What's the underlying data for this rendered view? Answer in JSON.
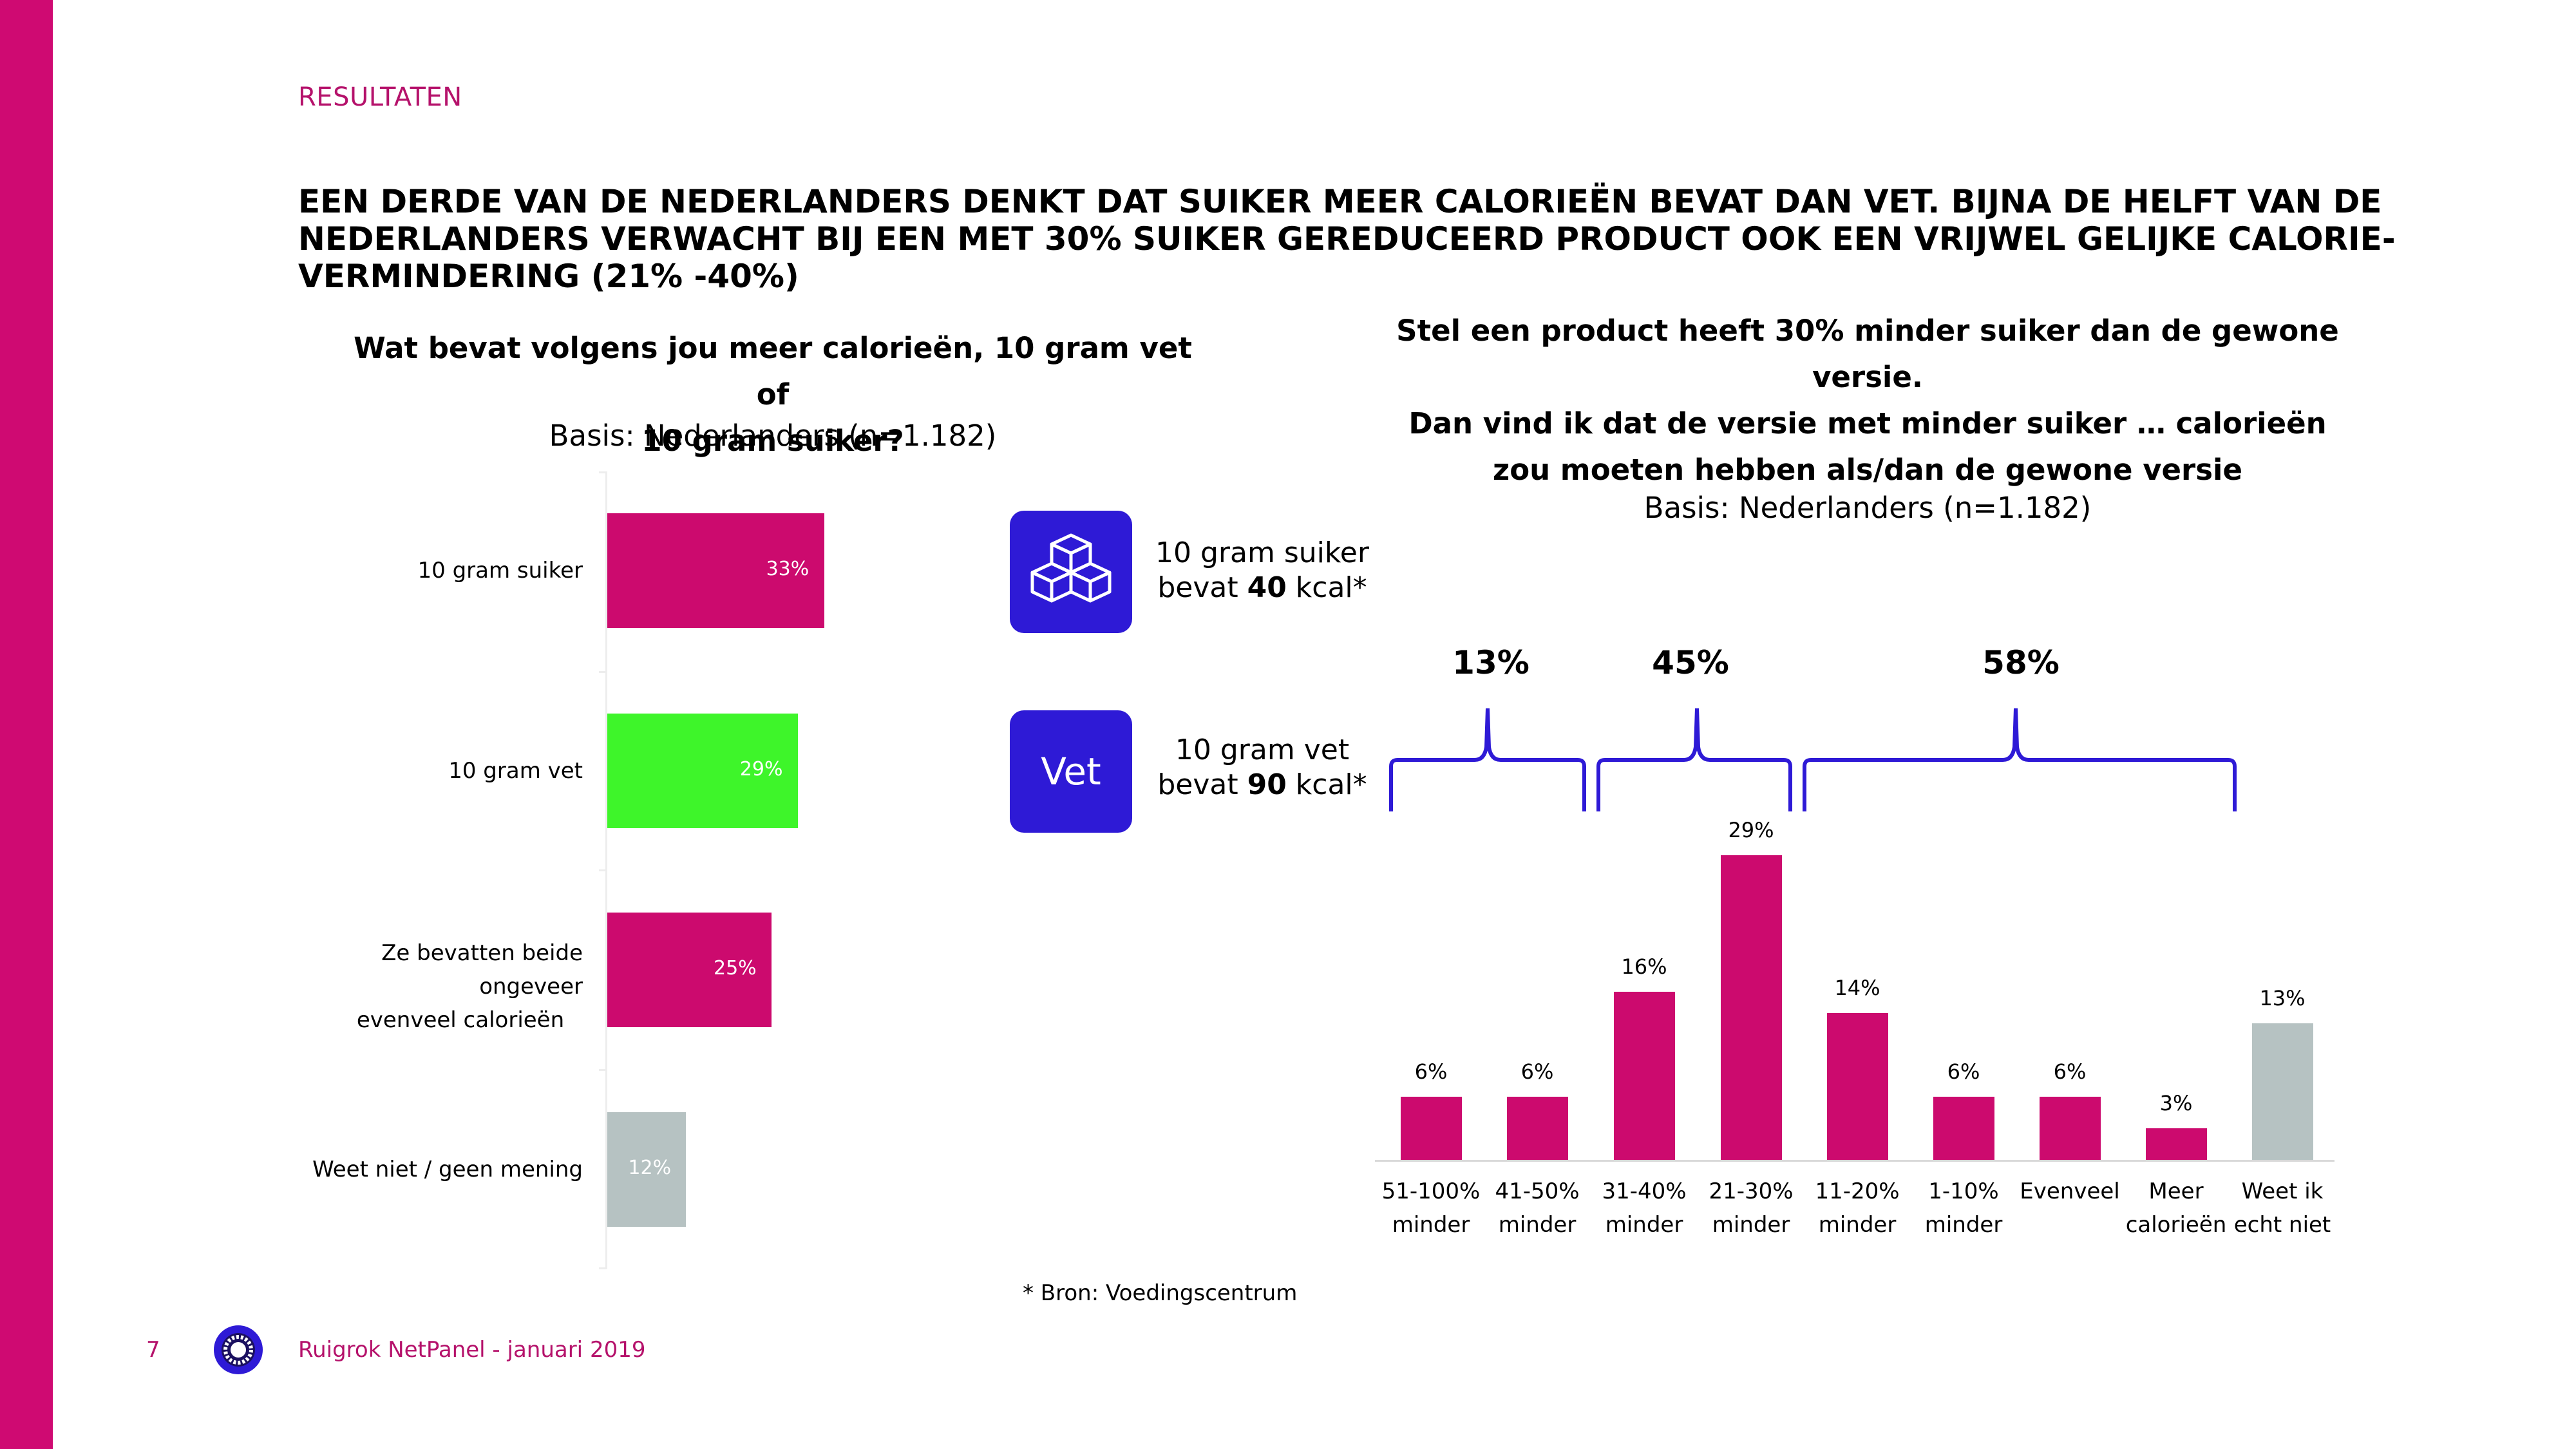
{
  "section": "RESULTATEN",
  "headline": "EEN DERDE VAN DE NEDERLANDERS DENKT DAT SUIKER MEER CALORIEËN BEVAT DAN VET. BIJNA DE HELFT VAN DE NEDERLANDERS VERWACHT BIJ EEN MET 30% SUIKER GEREDUCEERD PRODUCT OOK EEN VRIJWEL GELIJKE CALORIE-VERMINDERING (21% -40%)",
  "colors": {
    "accent": "#cf0a72",
    "pink": "#cc0a6e",
    "green": "#3ef52a",
    "grey": "#b6c2c2",
    "iconBlue": "#2e1ad6",
    "bracket": "#2e1ad6"
  },
  "icons": {
    "sugar": "sugar-cubes-icon",
    "fat": "vet-icon",
    "logo": "ruigrok-logo-icon"
  },
  "facts": {
    "sugar_line1": "10 gram suiker",
    "sugar_prefix": "bevat ",
    "sugar_kcal": "40",
    "sugar_suffix": " kcal*",
    "vet_icon_label": "Vet",
    "vet_line1": "10 gram vet",
    "vet_prefix": "bevat ",
    "vet_kcal": "90",
    "vet_suffix": " kcal*"
  },
  "brackets": [
    "13%",
    "45%",
    "58%"
  ],
  "source": "* Bron: Voedingscentrum",
  "footer": {
    "page": "7",
    "text": "Ruigrok NetPanel - januari 2019"
  },
  "chart_data": [
    {
      "type": "bar",
      "orientation": "horizontal",
      "title_line1": "Wat bevat volgens jou meer calorieën, 10 gram vet of",
      "title_line2": "10 gram suiker?",
      "basis": "Basis: Nederlanders (n=1.182)",
      "categories": [
        {
          "line1": "10 gram suiker",
          "line2": ""
        },
        {
          "line1": "10 gram vet",
          "line2": ""
        },
        {
          "line1": "Ze bevatten beide ongeveer",
          "line2": "evenveel calorieën"
        },
        {
          "line1": "Weet niet / geen mening",
          "line2": ""
        }
      ],
      "values": [
        33,
        29,
        25,
        12
      ],
      "value_labels": [
        "33%",
        "29%",
        "25%",
        "12%"
      ],
      "bar_colors": [
        "#cc0a6e",
        "#3ef52a",
        "#cc0a6e",
        "#b6c2c2"
      ],
      "xlim": [
        0,
        100
      ]
    },
    {
      "type": "bar",
      "orientation": "vertical",
      "title_line1": "Stel een product heeft 30% minder suiker dan de gewone",
      "title_line2": "versie.",
      "title_line3": "Dan vind ik dat de versie met minder suiker … calorieën",
      "title_line4": "zou moeten hebben als/dan de gewone versie",
      "basis": "Basis: Nederlanders (n=1.182)",
      "categories": [
        {
          "line1": "51-100%",
          "line2": "minder"
        },
        {
          "line1": "41-50%",
          "line2": "minder"
        },
        {
          "line1": "31-40%",
          "line2": "minder"
        },
        {
          "line1": "21-30%",
          "line2": "minder"
        },
        {
          "line1": "11-20%",
          "line2": "minder"
        },
        {
          "line1": "1-10%",
          "line2": "minder"
        },
        {
          "line1": "Evenveel",
          "line2": ""
        },
        {
          "line1": "Meer",
          "line2": "calorieën"
        },
        {
          "line1": "Weet ik",
          "line2": "echt niet"
        }
      ],
      "values": [
        6,
        6,
        16,
        29,
        14,
        6,
        6,
        3,
        13
      ],
      "value_labels": [
        "6%",
        "6%",
        "16%",
        "29%",
        "14%",
        "6%",
        "6%",
        "3%",
        "13%"
      ],
      "bar_colors": [
        "#cc0a6e",
        "#cc0a6e",
        "#cc0a6e",
        "#cc0a6e",
        "#cc0a6e",
        "#cc0a6e",
        "#cc0a6e",
        "#cc0a6e",
        "#b6c2c2"
      ],
      "ylim": [
        0,
        30
      ]
    }
  ]
}
